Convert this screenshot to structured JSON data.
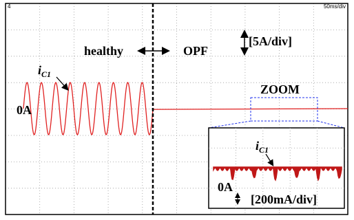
{
  "scope": {
    "time_scale": "50ms/div",
    "marker": "4"
  },
  "labels": {
    "healthy": "healthy",
    "opf": "OPF",
    "scale": "[5A/div]",
    "current": {
      "main": "i",
      "sub": "C1"
    },
    "zero": "0A",
    "zoom": "ZOOM"
  },
  "inset": {
    "current": {
      "main": "i",
      "sub": "C1"
    },
    "zero": "0A",
    "scale": "[200mA/div]"
  }
}
